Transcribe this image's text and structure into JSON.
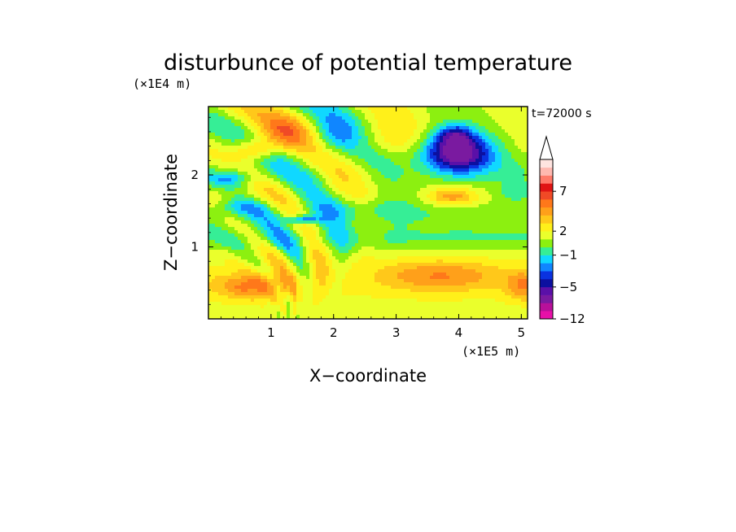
{
  "chart_data": {
    "type": "heatmap",
    "title": "disturbunce of potential temperature",
    "time_label": "t=72000 s",
    "xlabel": "X−coordinate",
    "ylabel": "Z−coordinate",
    "x_unit": "(×1E5 m)",
    "y_unit": "(×1E4 m)",
    "xlim": [
      0,
      5.1
    ],
    "ylim": [
      0,
      2.95
    ],
    "x_ticks": [
      {
        "value": 1,
        "label": "1"
      },
      {
        "value": 2,
        "label": "2"
      },
      {
        "value": 3,
        "label": "3"
      },
      {
        "value": 4,
        "label": "4"
      },
      {
        "value": 5,
        "label": "5"
      }
    ],
    "y_ticks": [
      {
        "value": 1,
        "label": "1"
      },
      {
        "value": 2,
        "label": "2"
      }
    ],
    "colorbar": {
      "levels": [
        -12,
        -10,
        -8,
        -6,
        -5,
        -4,
        -3,
        -2,
        -1,
        0,
        1,
        2,
        3,
        4,
        5,
        6,
        7,
        8,
        9,
        10
      ],
      "colors": [
        "#e810a8",
        "#b8109a",
        "#7a1aa0",
        "#5a10a8",
        "#0c10a0",
        "#0a32e0",
        "#1086ff",
        "#10d8ff",
        "#36ee96",
        "#8cf010",
        "#eaff2c",
        "#fff01a",
        "#ffc81a",
        "#ffa01a",
        "#ff781a",
        "#f04a26",
        "#e01414",
        "#ff7a6a",
        "#ffb8b0",
        "#ffe4e0"
      ],
      "labels": [
        {
          "value": -12,
          "label": "−12"
        },
        {
          "value": -5,
          "label": "−5"
        },
        {
          "value": -1,
          "label": "−1"
        },
        {
          "value": 2,
          "label": "2"
        },
        {
          "value": 7,
          "label": "7"
        }
      ],
      "extend": "max"
    },
    "features": [
      {
        "x": 3.95,
        "z": 2.3,
        "amp": -8.5,
        "sx": 0.55,
        "sz": 0.28
      },
      {
        "x": 3.95,
        "z": 2.55,
        "amp": -3.5,
        "sx": 0.25,
        "sz": 0.14
      },
      {
        "x": 3.9,
        "z": 1.7,
        "amp": 3.5,
        "sx": 0.38,
        "sz": 0.12
      },
      {
        "x": 0.7,
        "z": 0.45,
        "amp": 3.5,
        "sx": 0.6,
        "sz": 0.18
      },
      {
        "x": 3.7,
        "z": 0.6,
        "amp": 3.0,
        "sx": 1.0,
        "sz": 0.22
      },
      {
        "x": 5.05,
        "z": 0.45,
        "amp": 3.0,
        "sx": 0.3,
        "sz": 0.2
      },
      {
        "x": 0.75,
        "z": 2.35,
        "amp": 3.5,
        "sx": 0.35,
        "sz": 0.15
      },
      {
        "x": 1.5,
        "z": 1.38,
        "amp": -4.5,
        "sx": 0.25,
        "sz": 0.06
      },
      {
        "x": 0.35,
        "z": 1.95,
        "amp": -3.0,
        "sx": 0.35,
        "sz": 0.12
      },
      {
        "x": 2.0,
        "z": 2.5,
        "amp": -2.5,
        "sx": 0.4,
        "sz": 0.3
      },
      {
        "x": 1.2,
        "z": 2.6,
        "amp": 2.5,
        "sx": 0.45,
        "sz": 0.25
      },
      {
        "x": 2.5,
        "z": 1.55,
        "amp": -1.2,
        "sx": 0.8,
        "sz": 0.15
      },
      {
        "x": 0.55,
        "z": 1.55,
        "amp": -1.5,
        "sx": 0.5,
        "sz": 0.1
      },
      {
        "x": 4.9,
        "z": 1.75,
        "amp": -1.4,
        "sx": 0.3,
        "sz": 0.15
      },
      {
        "x": 2.8,
        "z": 2.5,
        "amp": 1.5,
        "sx": 0.5,
        "sz": 0.25
      },
      {
        "x": 0.15,
        "z": 1.75,
        "amp": 0.8,
        "sx": 0.4,
        "sz": 0.2
      }
    ]
  }
}
